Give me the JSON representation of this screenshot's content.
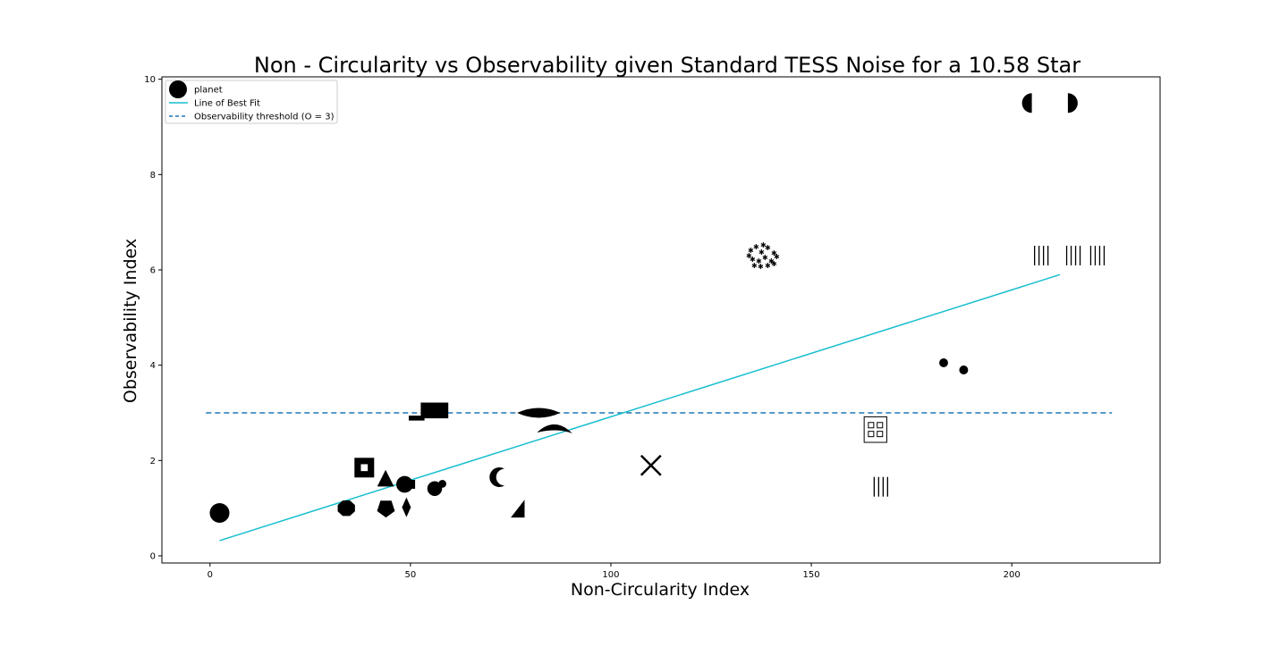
{
  "chart_data": {
    "type": "scatter",
    "title": "Non - Circularity vs Observability given Standard TESS Noise for a 10.58 Star",
    "xlabel": "Non-Circularity Index",
    "ylabel": "Observability Index",
    "xlim": [
      -12,
      237
    ],
    "ylim": [
      -0.15,
      10.05
    ],
    "x_ticks": [
      0,
      50,
      100,
      150,
      200
    ],
    "y_ticks": [
      0,
      2,
      4,
      6,
      8,
      10
    ],
    "grid": false,
    "legend_position": "top-left",
    "legend": [
      {
        "label": "planet",
        "kind": "marker"
      },
      {
        "label": "Line of Best Fit",
        "kind": "solid-line"
      },
      {
        "label": "Observability threshold (O = 3)",
        "kind": "dashed-line"
      }
    ],
    "colors": {
      "best_fit": "#17becf",
      "threshold": "#1f77b4",
      "marker": "#000000"
    },
    "points": [
      {
        "x": 2.4,
        "y": 0.9,
        "shape": "circle"
      },
      {
        "x": 34.0,
        "y": 1.0,
        "shape": "octagon"
      },
      {
        "x": 38.5,
        "y": 1.85,
        "shape": "square-frame"
      },
      {
        "x": 43.8,
        "y": 1.6,
        "shape": "triangle"
      },
      {
        "x": 43.9,
        "y": 0.98,
        "shape": "pentagon"
      },
      {
        "x": 49.0,
        "y": 1.5,
        "shape": "circle-with-notch"
      },
      {
        "x": 49.0,
        "y": 1.02,
        "shape": "diamond"
      },
      {
        "x": 53.5,
        "y": 2.9,
        "shape": "step-block"
      },
      {
        "x": 56.0,
        "y": 3.05,
        "shape": "rectangle"
      },
      {
        "x": 56.5,
        "y": 1.45,
        "shape": "blob-pair"
      },
      {
        "x": 72.0,
        "y": 1.65,
        "shape": "crescent"
      },
      {
        "x": 77.0,
        "y": 0.97,
        "shape": "wedge"
      },
      {
        "x": 82.0,
        "y": 3.0,
        "shape": "lens"
      },
      {
        "x": 86.0,
        "y": 2.65,
        "shape": "hook"
      },
      {
        "x": 110.0,
        "y": 1.9,
        "shape": "cross"
      },
      {
        "x": 138.0,
        "y": 6.3,
        "shape": "speckle-cluster"
      },
      {
        "x": 166.0,
        "y": 2.65,
        "shape": "grid-frame"
      },
      {
        "x": 168.0,
        "y": 1.45,
        "shape": "bars"
      },
      {
        "x": 183.0,
        "y": 4.05,
        "shape": "dot"
      },
      {
        "x": 188.0,
        "y": 3.9,
        "shape": "dot"
      },
      {
        "x": 205.0,
        "y": 9.5,
        "shape": "left-half-disc"
      },
      {
        "x": 208.0,
        "y": 6.3,
        "shape": "bars"
      },
      {
        "x": 214.0,
        "y": 9.5,
        "shape": "right-half-disc"
      },
      {
        "x": 216.0,
        "y": 6.3,
        "shape": "bars"
      },
      {
        "x": 222.0,
        "y": 6.3,
        "shape": "bars"
      }
    ],
    "best_fit": {
      "x_start": 2.4,
      "y_start": 0.32,
      "x_end": 212.0,
      "y_end": 5.9
    },
    "threshold": {
      "y": 3.0,
      "x_start": -1.0,
      "x_end": 225.0
    }
  }
}
